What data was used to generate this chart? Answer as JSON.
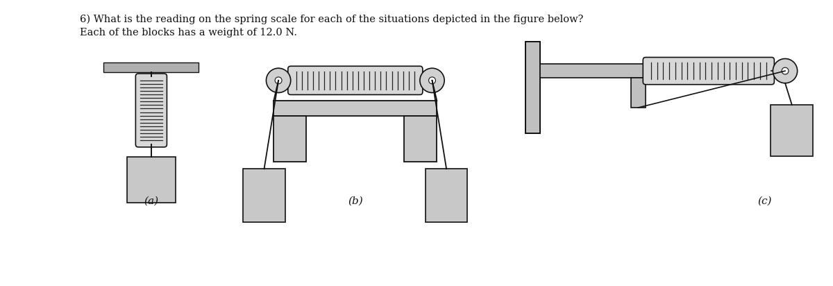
{
  "title_line1": "6) What is the reading on the spring scale for each of the situations depicted in the figure below?",
  "title_line2": "Each of the blocks has a weight of 12.0 N.",
  "label_a": "(a)",
  "label_b": "(b)",
  "label_c": "(c)",
  "bg_color": "#ffffff",
  "ceiling_color": "#b0b0b0",
  "spring_body_color": "#d8d8d8",
  "spring_line_color": "#222222",
  "block_color": "#c8c8c8",
  "line_color": "#111111",
  "pulley_outer_color": "#d0d0d0",
  "wall_color": "#c0c0c0",
  "text_color": "#111111",
  "frame_color": "#c8c8c8"
}
